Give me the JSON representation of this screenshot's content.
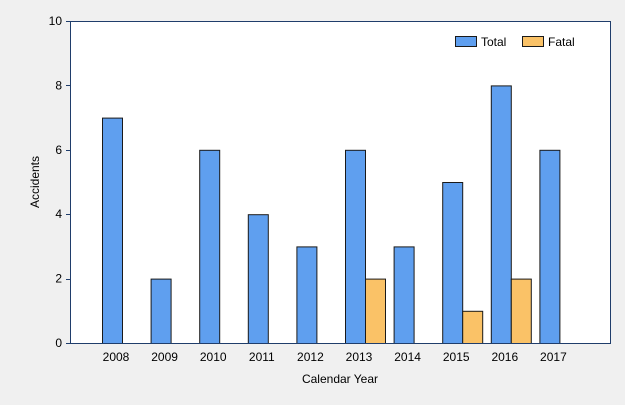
{
  "chart_data": {
    "type": "bar",
    "xlabel": "Calendar Year",
    "ylabel": "Accidents",
    "ylim": [
      0,
      10
    ],
    "yticks": [
      0,
      2,
      4,
      6,
      8,
      10
    ],
    "grid": false,
    "legend_position": "top-right",
    "categories": [
      "2008",
      "2009",
      "2010",
      "2011",
      "2012",
      "2013",
      "2014",
      "2015",
      "2016",
      "2017"
    ],
    "series": [
      {
        "name": "Total",
        "color": "#5f9fef",
        "values": [
          7,
          2,
          6,
          4,
          3,
          6,
          3,
          5,
          8,
          6
        ]
      },
      {
        "name": "Fatal",
        "color": "#fac267",
        "values": [
          0,
          0,
          0,
          0,
          0,
          2,
          0,
          1,
          2,
          0
        ]
      }
    ]
  },
  "colors": {
    "background": "#f0f0f0",
    "plot_area": "#ffffff",
    "axis": "#1f3d6b",
    "bar_stroke": "#1a1a1a"
  }
}
